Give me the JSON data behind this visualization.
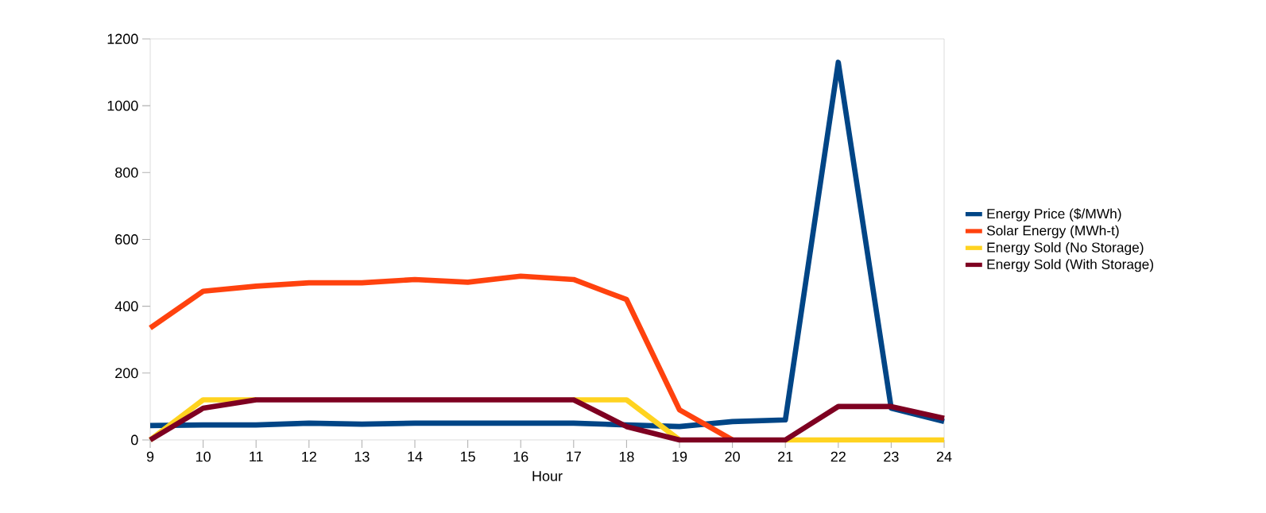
{
  "chart_data": {
    "type": "line",
    "xlabel": "Hour",
    "x": [
      9,
      10,
      11,
      12,
      13,
      14,
      15,
      16,
      17,
      18,
      19,
      20,
      21,
      22,
      23,
      24
    ],
    "series": [
      {
        "name": "Energy Price ($/MWh)",
        "color": "#004586",
        "values": [
          43,
          45,
          45,
          50,
          47,
          50,
          50,
          50,
          50,
          45,
          40,
          55,
          60,
          1130,
          95,
          55
        ]
      },
      {
        "name": "Solar Energy (MWh-t)",
        "color": "#ff420e",
        "values": [
          335,
          445,
          460,
          470,
          470,
          480,
          472,
          490,
          480,
          420,
          90,
          0,
          null,
          null,
          null,
          null
        ]
      },
      {
        "name": "Energy Sold (No Storage)",
        "color": "#ffd320",
        "values": [
          0,
          120,
          120,
          null,
          null,
          null,
          null,
          null,
          120,
          120,
          0,
          null,
          0,
          0,
          0,
          0
        ]
      },
      {
        "name": "Energy Sold (With Storage)",
        "color": "#7e0021",
        "values": [
          0,
          95,
          120,
          120,
          120,
          120,
          120,
          120,
          120,
          40,
          0,
          0,
          0,
          100,
          100,
          65
        ]
      }
    ],
    "xlim": [
      9,
      24
    ],
    "xticks": [
      9,
      10,
      11,
      12,
      13,
      14,
      15,
      16,
      17,
      18,
      19,
      20,
      21,
      22,
      23,
      24
    ],
    "ylim": [
      0,
      1200
    ],
    "yticks": [
      0,
      200,
      400,
      600,
      800,
      1000,
      1200
    ],
    "grid": false,
    "legend": "right",
    "marker": "none",
    "line_style": "solid"
  }
}
